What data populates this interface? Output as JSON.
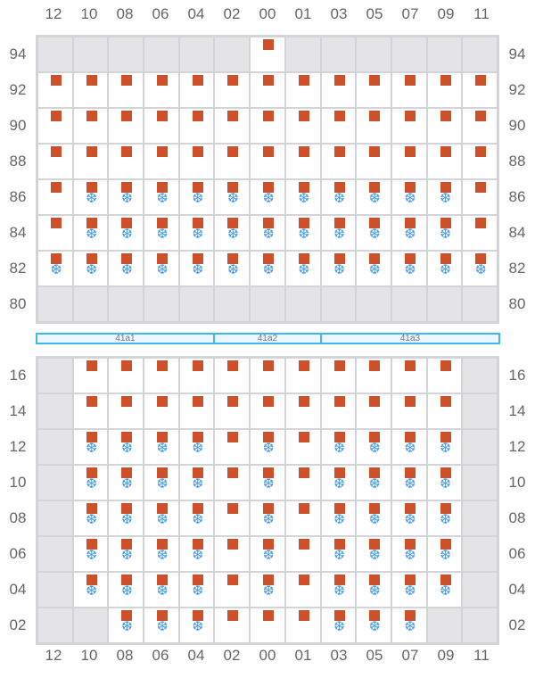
{
  "columns": [
    "12",
    "10",
    "08",
    "06",
    "04",
    "02",
    "00",
    "01",
    "03",
    "05",
    "07",
    "09",
    "11"
  ],
  "legend": {
    "g": "unavailable",
    "s": "occupied",
    "b": "occupied-refrigerated",
    "w": "empty"
  },
  "colors": {
    "occupied": "#cc512b",
    "refrigerated": "#4a9fe8",
    "unavailable": "#e4e4e7"
  },
  "top_grid": {
    "rows": [
      {
        "label": "94",
        "cells": [
          "g",
          "g",
          "g",
          "g",
          "g",
          "g",
          "s",
          "g",
          "g",
          "g",
          "g",
          "g",
          "g"
        ]
      },
      {
        "label": "92",
        "cells": [
          "s",
          "s",
          "s",
          "s",
          "s",
          "s",
          "s",
          "s",
          "s",
          "s",
          "s",
          "s",
          "s"
        ]
      },
      {
        "label": "90",
        "cells": [
          "s",
          "s",
          "s",
          "s",
          "s",
          "s",
          "s",
          "s",
          "s",
          "s",
          "s",
          "s",
          "s"
        ]
      },
      {
        "label": "88",
        "cells": [
          "s",
          "s",
          "s",
          "s",
          "s",
          "s",
          "s",
          "s",
          "s",
          "s",
          "s",
          "s",
          "s"
        ]
      },
      {
        "label": "86",
        "cells": [
          "s",
          "b",
          "b",
          "b",
          "b",
          "b",
          "b",
          "b",
          "b",
          "b",
          "b",
          "b",
          "s"
        ]
      },
      {
        "label": "84",
        "cells": [
          "s",
          "b",
          "b",
          "b",
          "b",
          "b",
          "b",
          "b",
          "b",
          "b",
          "b",
          "b",
          "s"
        ]
      },
      {
        "label": "82",
        "cells": [
          "b",
          "b",
          "b",
          "b",
          "b",
          "b",
          "b",
          "b",
          "b",
          "b",
          "b",
          "b",
          "b"
        ]
      },
      {
        "label": "80",
        "cells": [
          "g",
          "g",
          "g",
          "g",
          "g",
          "g",
          "g",
          "g",
          "g",
          "g",
          "g",
          "g",
          "g"
        ]
      }
    ]
  },
  "sections": [
    {
      "label": "41a1"
    },
    {
      "label": "41a2"
    },
    {
      "label": "41a3"
    }
  ],
  "bottom_grid": {
    "rows": [
      {
        "label": "16",
        "cells": [
          "g",
          "s",
          "s",
          "s",
          "s",
          "s",
          "s",
          "s",
          "s",
          "s",
          "s",
          "s",
          "g"
        ]
      },
      {
        "label": "14",
        "cells": [
          "g",
          "s",
          "s",
          "s",
          "s",
          "s",
          "s",
          "s",
          "s",
          "s",
          "s",
          "s",
          "g"
        ]
      },
      {
        "label": "12",
        "cells": [
          "g",
          "b",
          "b",
          "b",
          "b",
          "s",
          "b",
          "s",
          "b",
          "b",
          "b",
          "b",
          "g"
        ]
      },
      {
        "label": "10",
        "cells": [
          "g",
          "b",
          "b",
          "b",
          "b",
          "s",
          "b",
          "s",
          "b",
          "b",
          "b",
          "b",
          "g"
        ]
      },
      {
        "label": "08",
        "cells": [
          "g",
          "b",
          "b",
          "b",
          "b",
          "s",
          "b",
          "s",
          "b",
          "b",
          "b",
          "b",
          "g"
        ]
      },
      {
        "label": "06",
        "cells": [
          "g",
          "b",
          "b",
          "b",
          "b",
          "s",
          "b",
          "s",
          "b",
          "b",
          "b",
          "b",
          "g"
        ]
      },
      {
        "label": "04",
        "cells": [
          "g",
          "b",
          "b",
          "b",
          "b",
          "s",
          "b",
          "s",
          "b",
          "b",
          "b",
          "b",
          "g"
        ]
      },
      {
        "label": "02",
        "cells": [
          "g",
          "g",
          "b",
          "b",
          "b",
          "s",
          "s",
          "s",
          "b",
          "b",
          "b",
          "g",
          "g"
        ]
      }
    ]
  }
}
